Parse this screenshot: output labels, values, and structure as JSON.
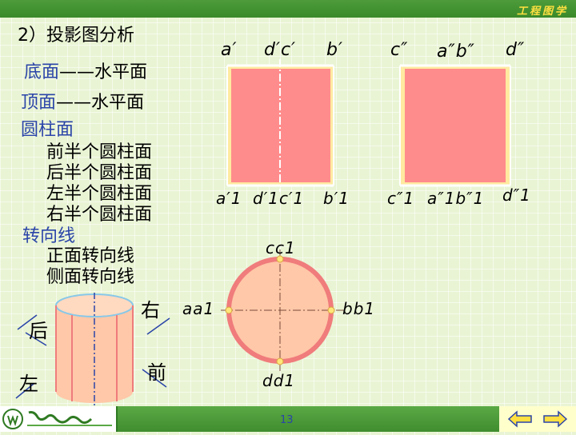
{
  "header": {
    "course_title": "工程图学"
  },
  "slide": {
    "title": "2）投影图分析",
    "terms": {
      "bottom_face": "底面",
      "bottom_desc": "——水平面",
      "top_face": "顶面",
      "top_desc": "——水平面",
      "cylinder_face": "圆柱面",
      "front_half": "前半个圆柱面",
      "back_half": "后半个圆柱面",
      "left_half": "左半个圆柱面",
      "right_half": "右半个圆柱面",
      "contour_lines": "转向线",
      "front_contour": "正面转向线",
      "side_contour": "侧面转向线"
    }
  },
  "front_view": {
    "top_labels": [
      "a′",
      "d′c′",
      "b′"
    ],
    "bottom_labels": [
      "a′1",
      "d′1c′1",
      "b′1"
    ]
  },
  "side_view": {
    "top_labels": [
      "c″",
      "a″b″",
      "d″"
    ],
    "bottom_labels": [
      "c″1",
      "a″1b″1",
      "d″1"
    ]
  },
  "top_view": {
    "label_top": "cc1",
    "label_left": "aa1",
    "label_right": "bb1",
    "label_bottom": "dd1"
  },
  "cylinder_3d": {
    "label_back": "后",
    "label_right": "右",
    "label_front": "前",
    "label_left": "左"
  },
  "footer": {
    "page_number": "13",
    "prev_icon": "left-arrow-icon",
    "next_icon": "right-arrow-icon"
  },
  "colors": {
    "fill_pink": "#ff8c8c",
    "cylinder_fill": "#ffc8a8",
    "circle_rim": "#f07c7c",
    "title_blue": "#2a44a8",
    "accent_yellow": "#ffe040",
    "bar_green": "#3a8a2a"
  }
}
